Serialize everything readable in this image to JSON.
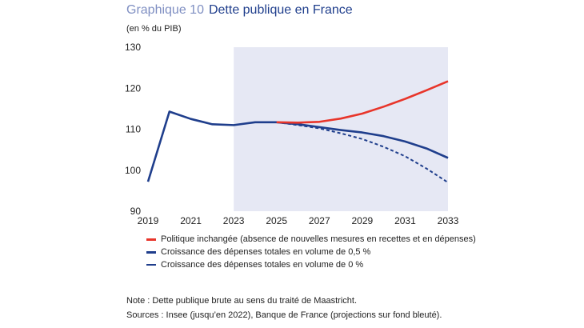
{
  "title_number": "Graphique 10",
  "title": "Dette publique en France",
  "unit": "(en % du PIB)",
  "chart_data": {
    "type": "line",
    "x": [
      2019,
      2020,
      2021,
      2022,
      2023,
      2024,
      2025,
      2026,
      2027,
      2028,
      2029,
      2030,
      2031,
      2032,
      2033
    ],
    "xticks": [
      2019,
      2021,
      2023,
      2025,
      2027,
      2029,
      2031,
      2033
    ],
    "yticks": [
      90,
      100,
      110,
      120,
      130
    ],
    "xlim": [
      2019,
      2033
    ],
    "ylim": [
      90,
      130
    ],
    "shaded_range": [
      2023,
      2033
    ],
    "shade_color": "#e6e8f4",
    "grid": false,
    "legend_placement": "bottom",
    "series": [
      {
        "name": "Politique inchangée (absence de nouvelles mesures en recettes et en dépenses)",
        "color": "#e8352a",
        "style": "solid",
        "x": [
          2025,
          2026,
          2027,
          2028,
          2029,
          2030,
          2031,
          2032,
          2033
        ],
        "values": [
          111.7,
          111.6,
          111.8,
          112.6,
          113.8,
          115.5,
          117.4,
          119.5,
          121.7
        ]
      },
      {
        "name": "Croissance des dépenses totales en volume de 0,5 %",
        "color": "#1f3e8c",
        "style": "solid",
        "x": [
          2019,
          2020,
          2021,
          2022,
          2023,
          2024,
          2025,
          2026,
          2027,
          2028,
          2029,
          2030,
          2031,
          2032,
          2033
        ],
        "values": [
          97.2,
          114.3,
          112.5,
          111.2,
          111.0,
          111.7,
          111.7,
          111.2,
          110.5,
          109.8,
          109.2,
          108.3,
          107.0,
          105.3,
          103.0
        ]
      },
      {
        "name": "Croissance des dépenses totales en volume de 0 %",
        "color": "#1f3e8c",
        "style": "dashed",
        "x": [
          2025,
          2026,
          2027,
          2028,
          2029,
          2030,
          2031,
          2032,
          2033
        ],
        "values": [
          111.7,
          111.0,
          110.2,
          109.0,
          107.6,
          105.7,
          103.4,
          100.4,
          97.0
        ]
      }
    ]
  },
  "notes": [
    "Note : Dette publique brute au sens du traité de Maastricht.",
    "Sources : Insee (jusqu’en 2022), Banque de France (projections sur fond bleuté)."
  ]
}
